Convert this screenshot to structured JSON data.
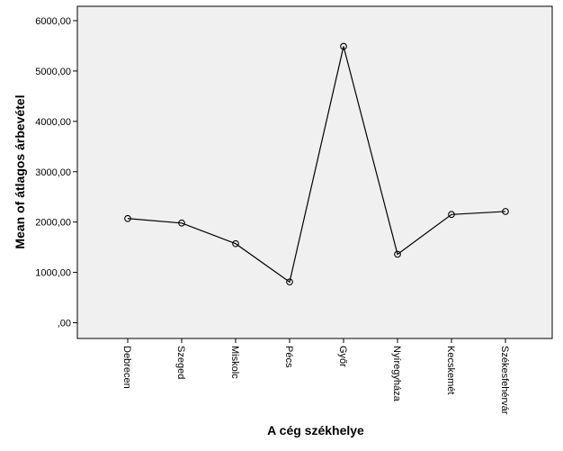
{
  "chart_data": {
    "type": "line",
    "title": "",
    "xlabel": "A cég székhelye",
    "ylabel": "Mean of átlagos árbevétel",
    "categories": [
      "Debrecen",
      "Szeged",
      "Miskolc",
      "Pécs",
      "Győr",
      "Nyíregyháza",
      "Kecskemét",
      "Székesfehérvár"
    ],
    "series": [
      {
        "values": [
          2070,
          1980,
          1570,
          810,
          5490,
          1360,
          2150,
          2210
        ]
      }
    ],
    "ylim": [
      -300,
      6250
    ],
    "yticks": [
      0,
      1000,
      2000,
      3000,
      4000,
      5000,
      6000
    ],
    "ytick_labels": [
      ",00",
      "1000,00",
      "2000,00",
      "3000,00",
      "4000,00",
      "5000,00",
      "6000,00"
    ],
    "grid": false,
    "marker": "open-circle",
    "plot_background": "#f0f0f0",
    "line_color": "#000000"
  }
}
